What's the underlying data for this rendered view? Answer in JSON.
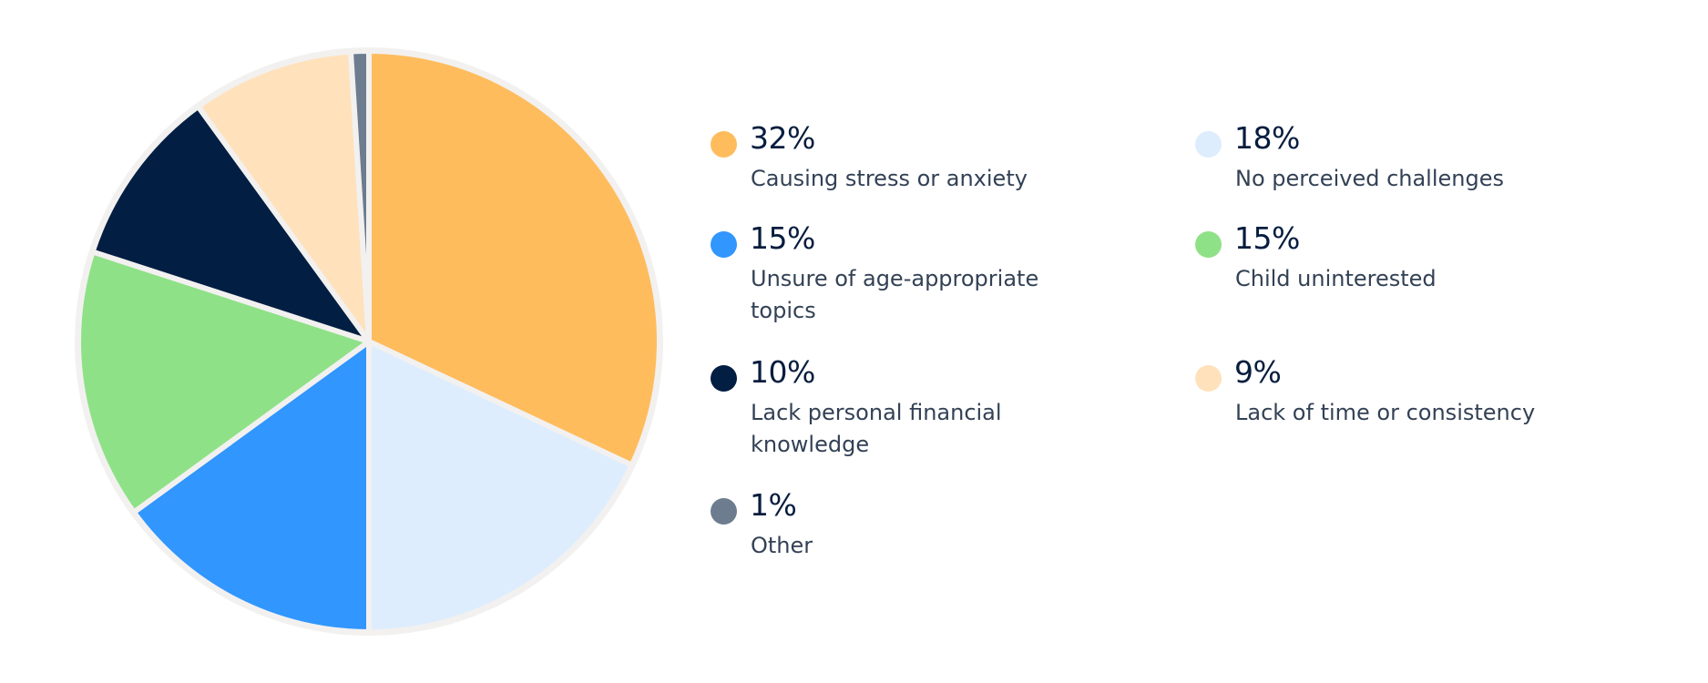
{
  "chart_data": {
    "type": "pie",
    "slices": [
      {
        "label": "Causing stress or anxiety",
        "value": 32,
        "value_text": "32%",
        "color": "#FFBC5D"
      },
      {
        "label": "No perceived challenges",
        "value": 18,
        "value_text": "18%",
        "color": "#DDEDFD"
      },
      {
        "label": "Unsure of age-appropriate topics",
        "value": 15,
        "value_text": "15%",
        "color": "#3196FD"
      },
      {
        "label": "Child uninterested",
        "value": 15,
        "value_text": "15%",
        "color": "#8FE187"
      },
      {
        "label": "Lack personal financial knowledge",
        "value": 10,
        "value_text": "10%",
        "color": "#021E42"
      },
      {
        "label": "Lack of time or consistency",
        "value": 9,
        "value_text": "9%",
        "color": "#FFE1BB"
      },
      {
        "label": "Other",
        "value": 1,
        "value_text": "1%",
        "color": "#6D7C8F"
      }
    ]
  },
  "colors": {
    "background": "#FFFFFF",
    "slice_border": "#F2F1F0",
    "value_text": "#071D3E",
    "label_text": "#334155"
  }
}
